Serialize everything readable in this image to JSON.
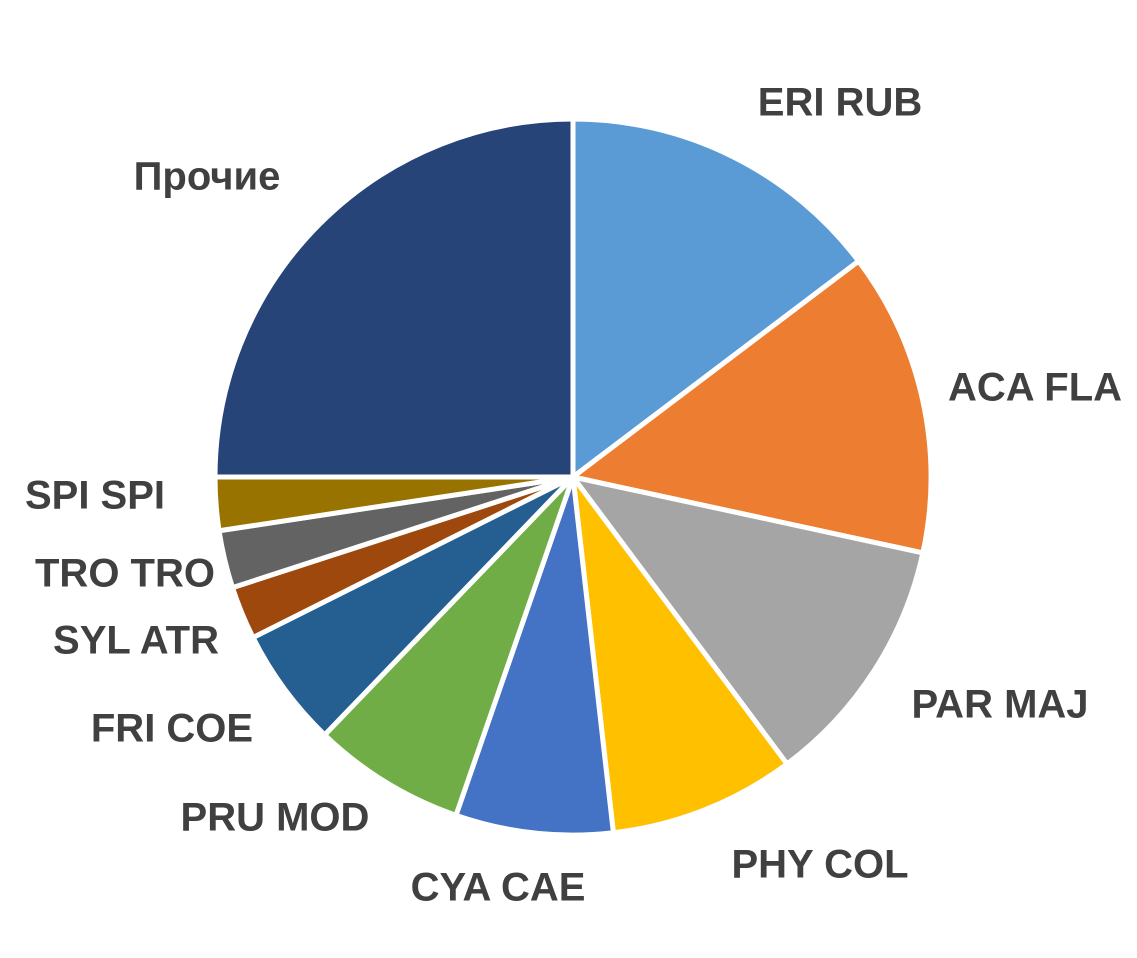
{
  "chart_data": {
    "type": "pie",
    "categories": [
      "ERI RUB",
      "ACA FLA",
      "PAR MAJ",
      "PHY COL",
      "CYA CAE",
      "PRU MOD",
      "FRI COE",
      "SYL ATR",
      "TRO TRO",
      "SPI SPI",
      "Прочие"
    ],
    "values": [
      14.7,
      13.7,
      11.4,
      8.4,
      7.1,
      6.9,
      5.4,
      2.4,
      2.6,
      2.4,
      25.0
    ],
    "colors": [
      "#5b9bd5",
      "#ed7d31",
      "#a5a5a5",
      "#ffc000",
      "#4472c4",
      "#70ad47",
      "#255e91",
      "#9e480e",
      "#636363",
      "#997300",
      "#264478"
    ]
  }
}
